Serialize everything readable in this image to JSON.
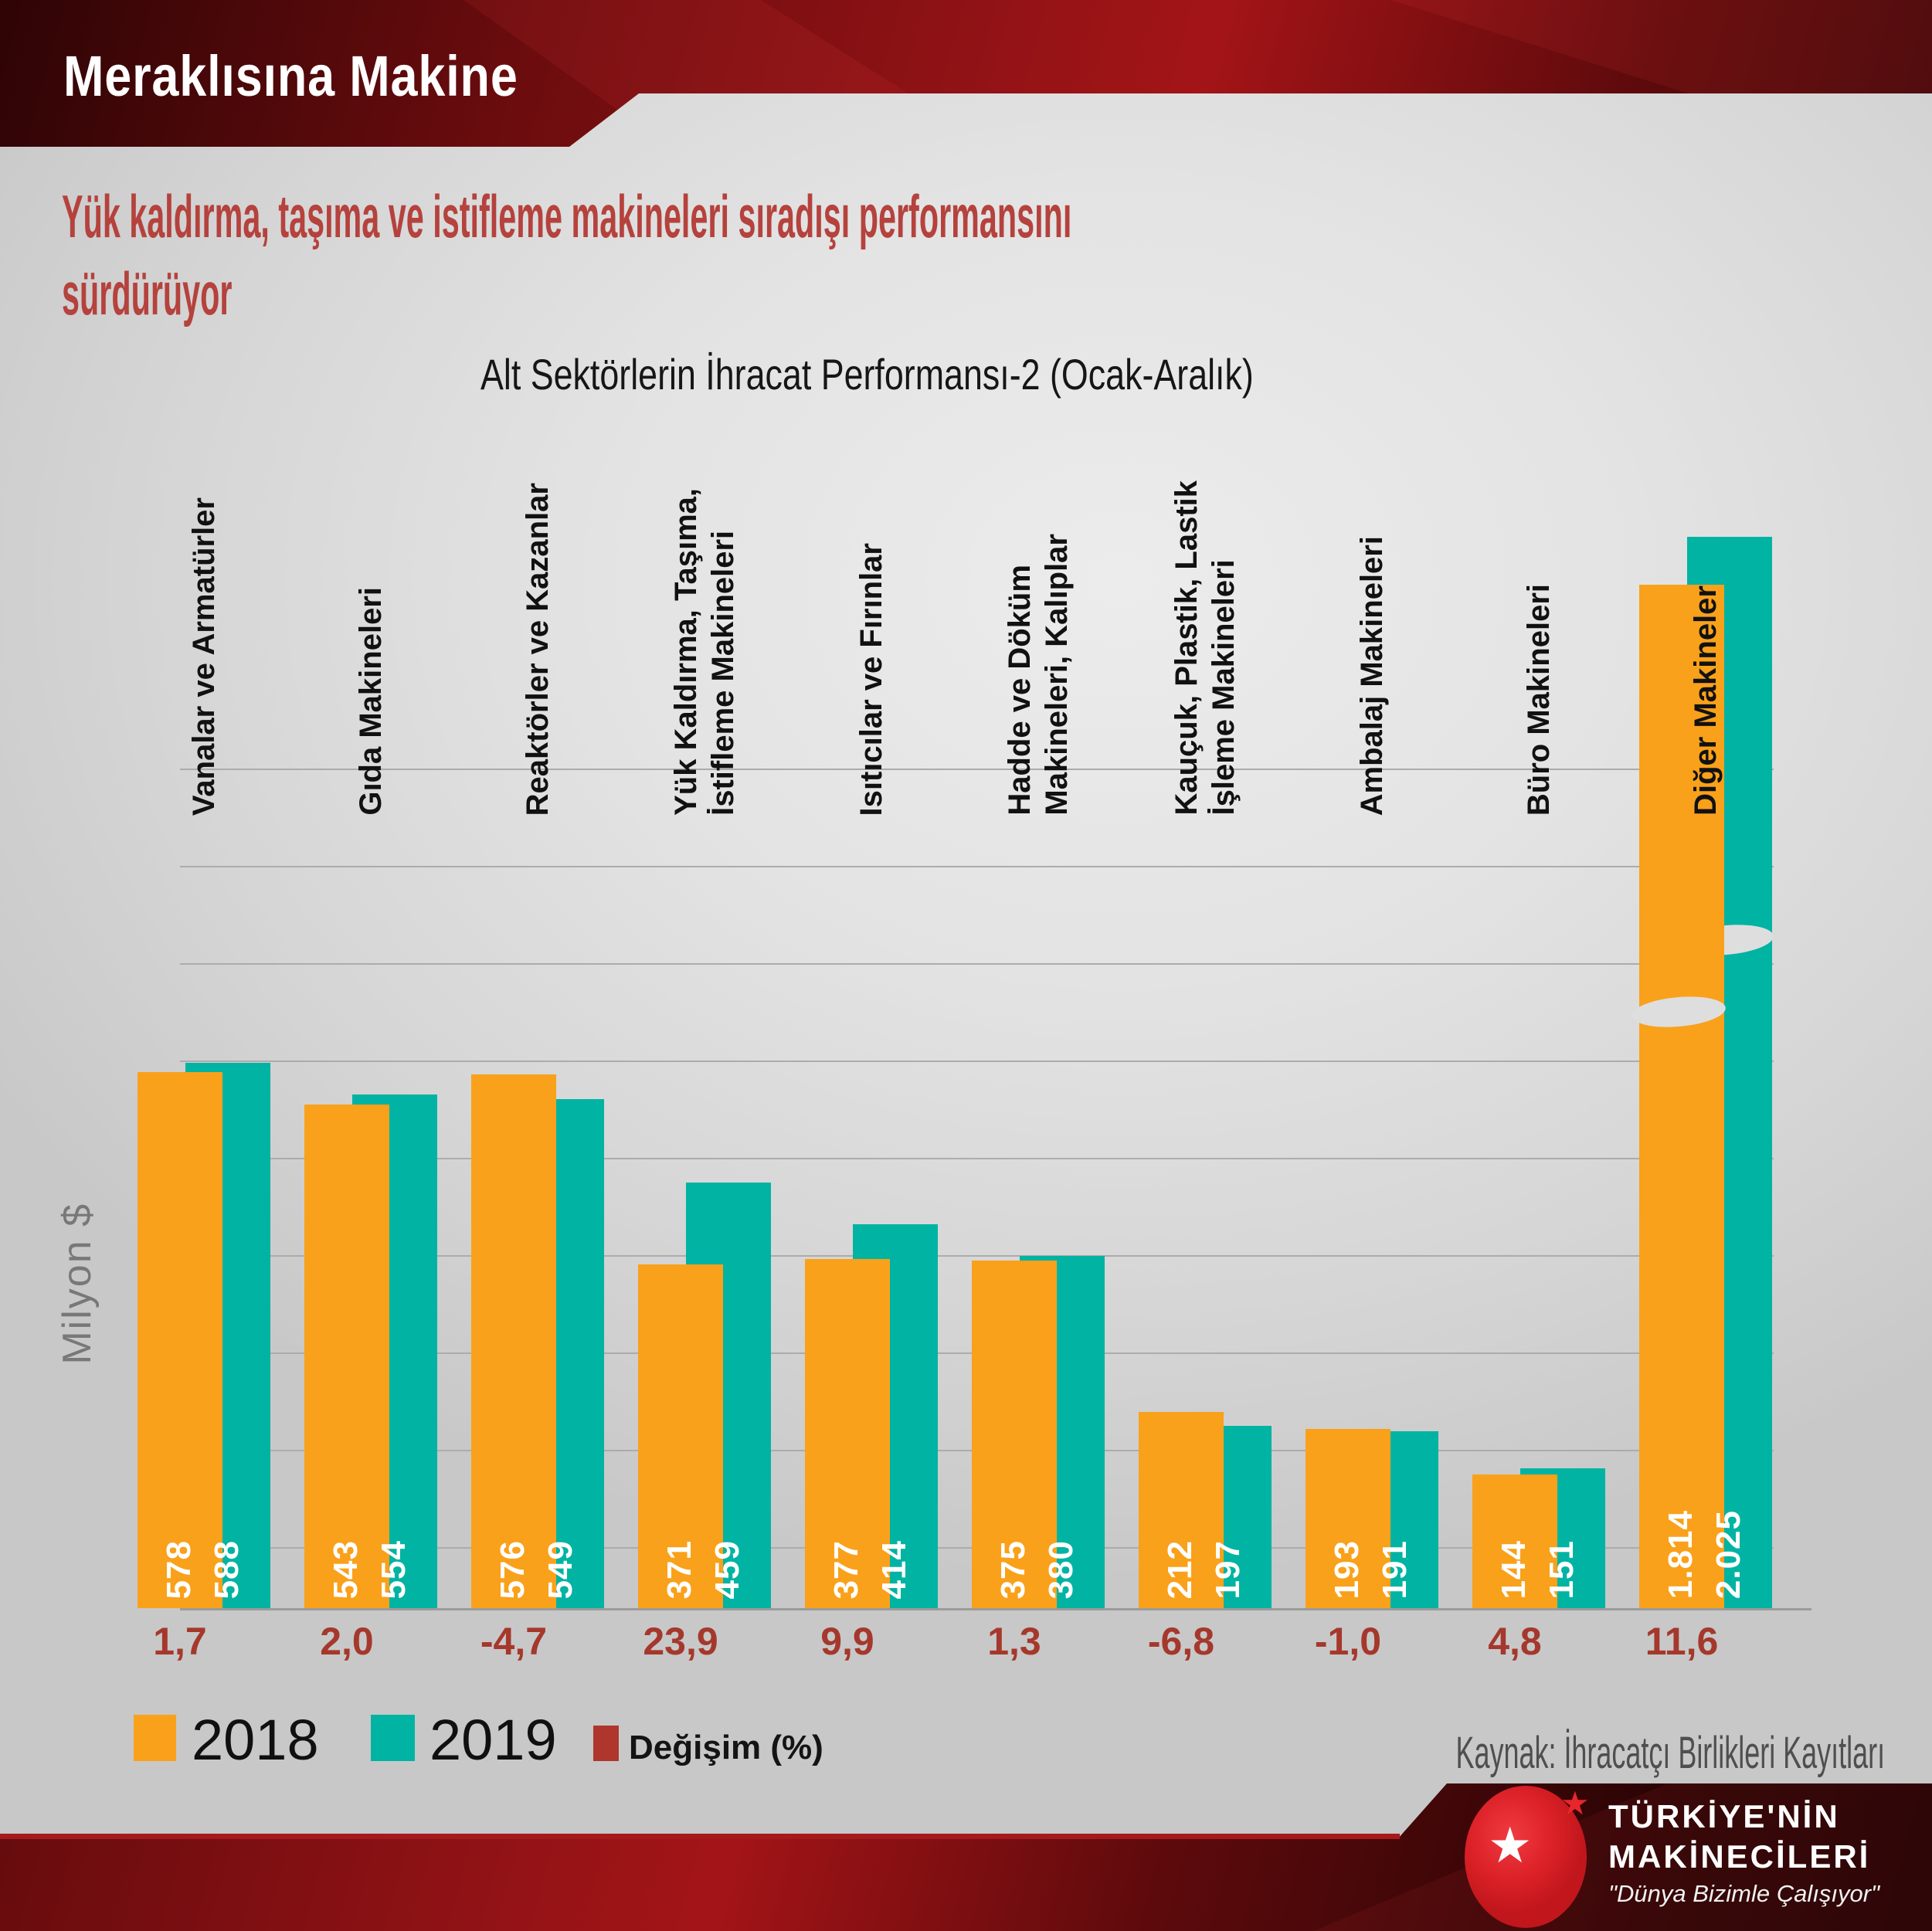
{
  "header": {
    "title": "Meraklısına Makine"
  },
  "page": {
    "title_line1": "Yük kaldırma, taşıma ve istifleme makineleri sıradışı performansını",
    "title_line2": "sürdürüyor"
  },
  "chart_data": {
    "type": "bar",
    "title": "Alt Sektörlerin İhracat Performansı-2 (Ocak-Aralık)",
    "ylabel": "Milyon $",
    "grid": true,
    "legend_position": "bottom-left",
    "broken_axis_index": 9,
    "categories": [
      "Vanalar ve Armatürler",
      "Gıda Makineleri",
      "Reaktörler ve Kazanlar",
      "Yük Kaldırma, Taşıma,\nİstifleme Makineleri",
      "Isıtıcılar ve Fırınlar",
      "Hadde ve Döküm\nMakineleri, Kalıplar",
      "Kauçuk, Plastik, Lastik\nİşleme Makineleri",
      "Ambalaj Makineleri",
      "Büro Makineleri",
      "Diğer Makineler"
    ],
    "series": [
      {
        "name": "2018",
        "color": "#F9A11B",
        "values": [
          578,
          543,
          576,
          371,
          377,
          375,
          212,
          193,
          144,
          1814
        ],
        "labels": [
          "578",
          "543",
          "576",
          "371",
          "377",
          "375",
          "212",
          "193",
          "144",
          "1.814"
        ]
      },
      {
        "name": "2019",
        "color": "#00B3A3",
        "values": [
          588,
          554,
          549,
          459,
          414,
          380,
          197,
          191,
          151,
          2025
        ],
        "labels": [
          "588",
          "554",
          "549",
          "459",
          "414",
          "380",
          "197",
          "191",
          "151",
          "2.025"
        ]
      }
    ],
    "change": {
      "name": "Değişim (%)",
      "color": "#A5382C",
      "values": [
        "1,7",
        "2,0",
        "-4,7",
        "23,9",
        "9,9",
        "1,3",
        "-6,8",
        "-1,0",
        "4,8",
        "11,6"
      ]
    }
  },
  "legend": {
    "items": [
      {
        "label": "2018",
        "color": "#F9A11B"
      },
      {
        "label": "2019",
        "color": "#00B3A3"
      },
      {
        "label": "Değişim (%)",
        "color": "#AE362D"
      }
    ]
  },
  "source": {
    "text": "Kaynak: İhracatçı Birlikleri Kayıtları"
  },
  "logo": {
    "star": "★",
    "line1": "TÜRKİYE'NİN",
    "line2": "MAKİNECİLERİ",
    "tagline": "\"Dünya Bizimle Çalışıyor\""
  }
}
